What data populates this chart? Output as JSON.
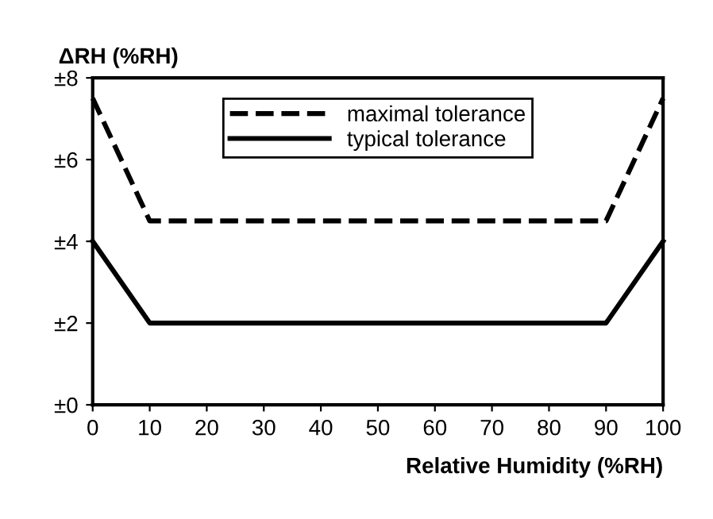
{
  "chart_data": {
    "type": "line",
    "ylabel": "ΔRH (%RH)",
    "xlabel": "Relative Humidity (%RH)",
    "x": [
      0,
      10,
      90,
      100
    ],
    "series": [
      {
        "name": "maximal tolerance",
        "color": "#000000",
        "line_style": "dashed",
        "values": [
          7.5,
          4.5,
          4.5,
          7.5
        ]
      },
      {
        "name": "typical tolerance",
        "color": "#000000",
        "line_style": "solid",
        "values": [
          4,
          2,
          2,
          4
        ]
      }
    ],
    "xlim": [
      0,
      100
    ],
    "xticks": [
      0,
      10,
      20,
      30,
      40,
      50,
      60,
      70,
      80,
      90,
      100
    ],
    "ylim": [
      0,
      8
    ],
    "yticks": [
      {
        "value": 0,
        "label": "±0"
      },
      {
        "value": 2,
        "label": "±2"
      },
      {
        "value": 4,
        "label": "±4"
      },
      {
        "value": 6,
        "label": "±6"
      },
      {
        "value": 8,
        "label": "±8"
      }
    ],
    "legend": "top",
    "grid": false,
    "marker": "none"
  }
}
